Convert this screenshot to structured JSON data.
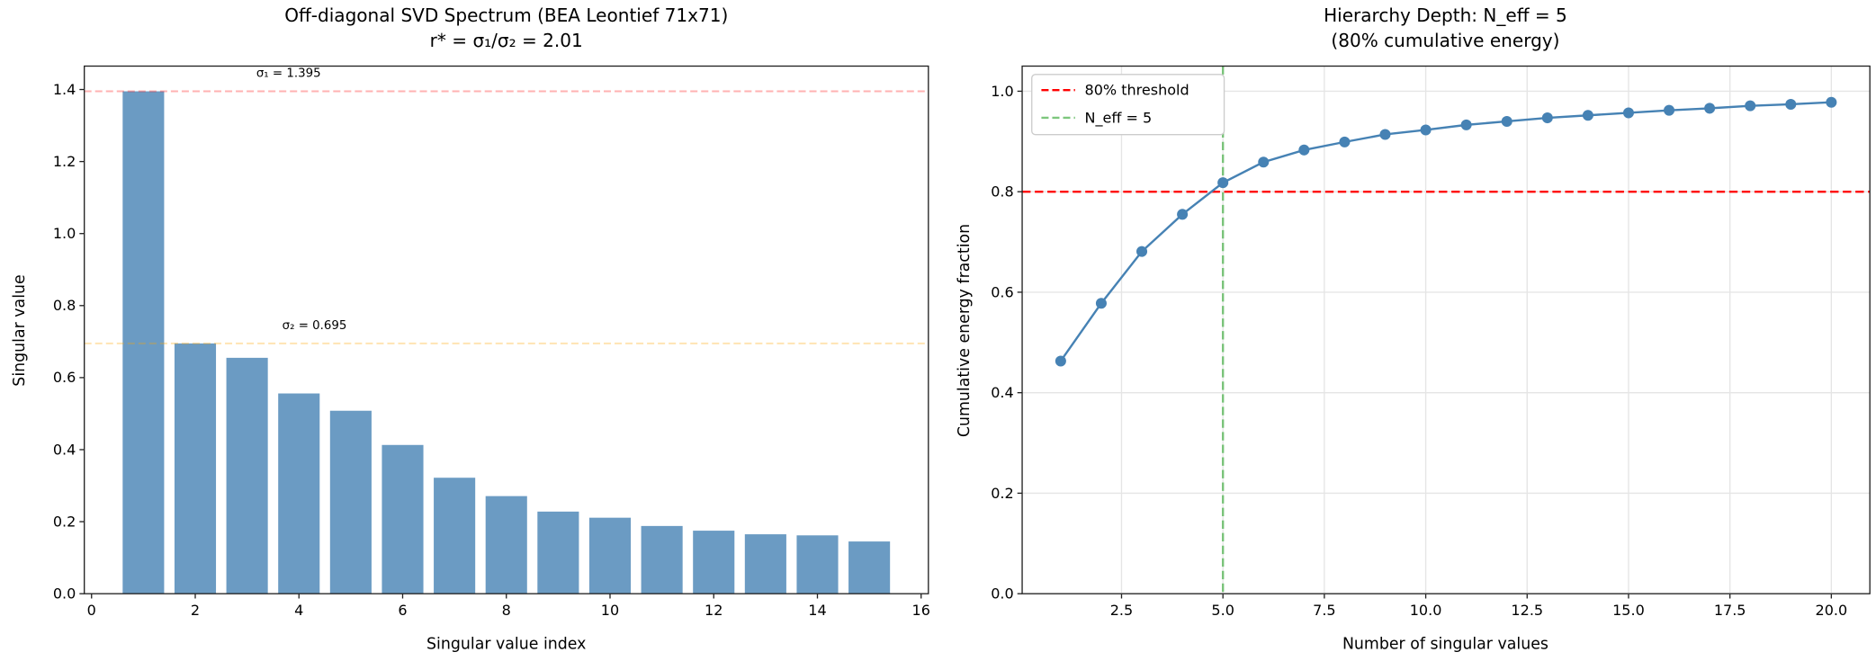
{
  "chart_data": [
    {
      "type": "bar",
      "title": "Off-diagonal SVD Spectrum (BEA Leontief 71x71)",
      "subtitle": "r* = σ₁/σ₂ = 2.01",
      "xlabel": "Singular value index",
      "ylabel": "Singular value",
      "x": [
        1,
        2,
        3,
        4,
        5,
        6,
        7,
        8,
        9,
        10,
        11,
        12,
        13,
        14,
        15
      ],
      "values": [
        1.395,
        0.695,
        0.655,
        0.556,
        0.508,
        0.413,
        0.322,
        0.271,
        0.228,
        0.211,
        0.188,
        0.175,
        0.165,
        0.162,
        0.145
      ],
      "xlim": [
        -0.14,
        16.14
      ],
      "ylim": [
        0,
        1.465
      ],
      "xticks": [
        "0",
        "2",
        "4",
        "6",
        "8",
        "10",
        "12",
        "14",
        "16"
      ],
      "yticks": [
        "0.0",
        "0.2",
        "0.4",
        "0.6",
        "0.8",
        "1.0",
        "1.2",
        "1.4"
      ],
      "grid": false,
      "bar_color": "#4682b4",
      "reference_lines": [
        {
          "y": 1.395,
          "color": "#ff0000",
          "label": "σ₁ = 1.395",
          "label_x": 3.8
        },
        {
          "y": 0.695,
          "color": "#ffa500",
          "label": "σ₂ = 0.695",
          "label_x": 4.3
        }
      ]
    },
    {
      "type": "line",
      "title": "Hierarchy Depth: N_eff = 5",
      "subtitle": "(80% cumulative energy)",
      "xlabel": "Number of singular values",
      "ylabel": "Cumulative energy fraction",
      "x": [
        1,
        2,
        3,
        4,
        5,
        6,
        7,
        8,
        9,
        10,
        11,
        12,
        13,
        14,
        15,
        16,
        17,
        18,
        19,
        20
      ],
      "values": [
        0.463,
        0.578,
        0.681,
        0.755,
        0.818,
        0.859,
        0.883,
        0.899,
        0.914,
        0.923,
        0.933,
        0.94,
        0.947,
        0.952,
        0.957,
        0.962,
        0.966,
        0.971,
        0.974,
        0.978
      ],
      "xlim": [
        0.05,
        20.95
      ],
      "ylim": [
        0,
        1.05
      ],
      "xticks": [
        "2.5",
        "5.0",
        "7.5",
        "10.0",
        "12.5",
        "15.0",
        "17.5",
        "20.0"
      ],
      "yticks": [
        "0.0",
        "0.2",
        "0.4",
        "0.6",
        "0.8",
        "1.0"
      ],
      "grid": true,
      "line_color": "#4682b4",
      "threshold": {
        "y": 0.8,
        "color": "#ff0000",
        "name": "80% threshold"
      },
      "n_eff": {
        "x": 5,
        "color": "#5cb85c",
        "name": "N_eff = 5"
      },
      "legend": "top-left"
    }
  ]
}
